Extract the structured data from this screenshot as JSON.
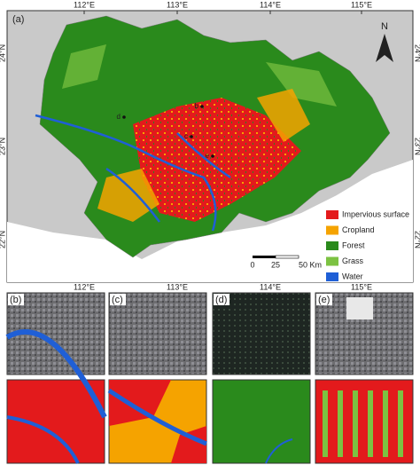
{
  "map": {
    "panel_label": "(a)",
    "longitude_labels": [
      "112°E",
      "113°E",
      "114°E",
      "115°E"
    ],
    "latitude_labels": [
      "24°N",
      "23°N",
      "22°N"
    ],
    "north": "N",
    "site_labels": [
      "d",
      "b",
      "c",
      "e"
    ],
    "legend": [
      {
        "name": "Impervious surface",
        "color": "#e31a1c"
      },
      {
        "name": "Cropland",
        "color": "#f5a300"
      },
      {
        "name": "Forest",
        "color": "#2a8a1c"
      },
      {
        "name": "Grass",
        "color": "#7cc242"
      },
      {
        "name": "Water",
        "color": "#1f5fd6"
      }
    ],
    "scale_bar": [
      "0",
      "25",
      "50 Km"
    ]
  },
  "subpanels": [
    {
      "label": "(b)"
    },
    {
      "label": "(c)"
    },
    {
      "label": "(d)"
    },
    {
      "label": "(e)"
    }
  ]
}
